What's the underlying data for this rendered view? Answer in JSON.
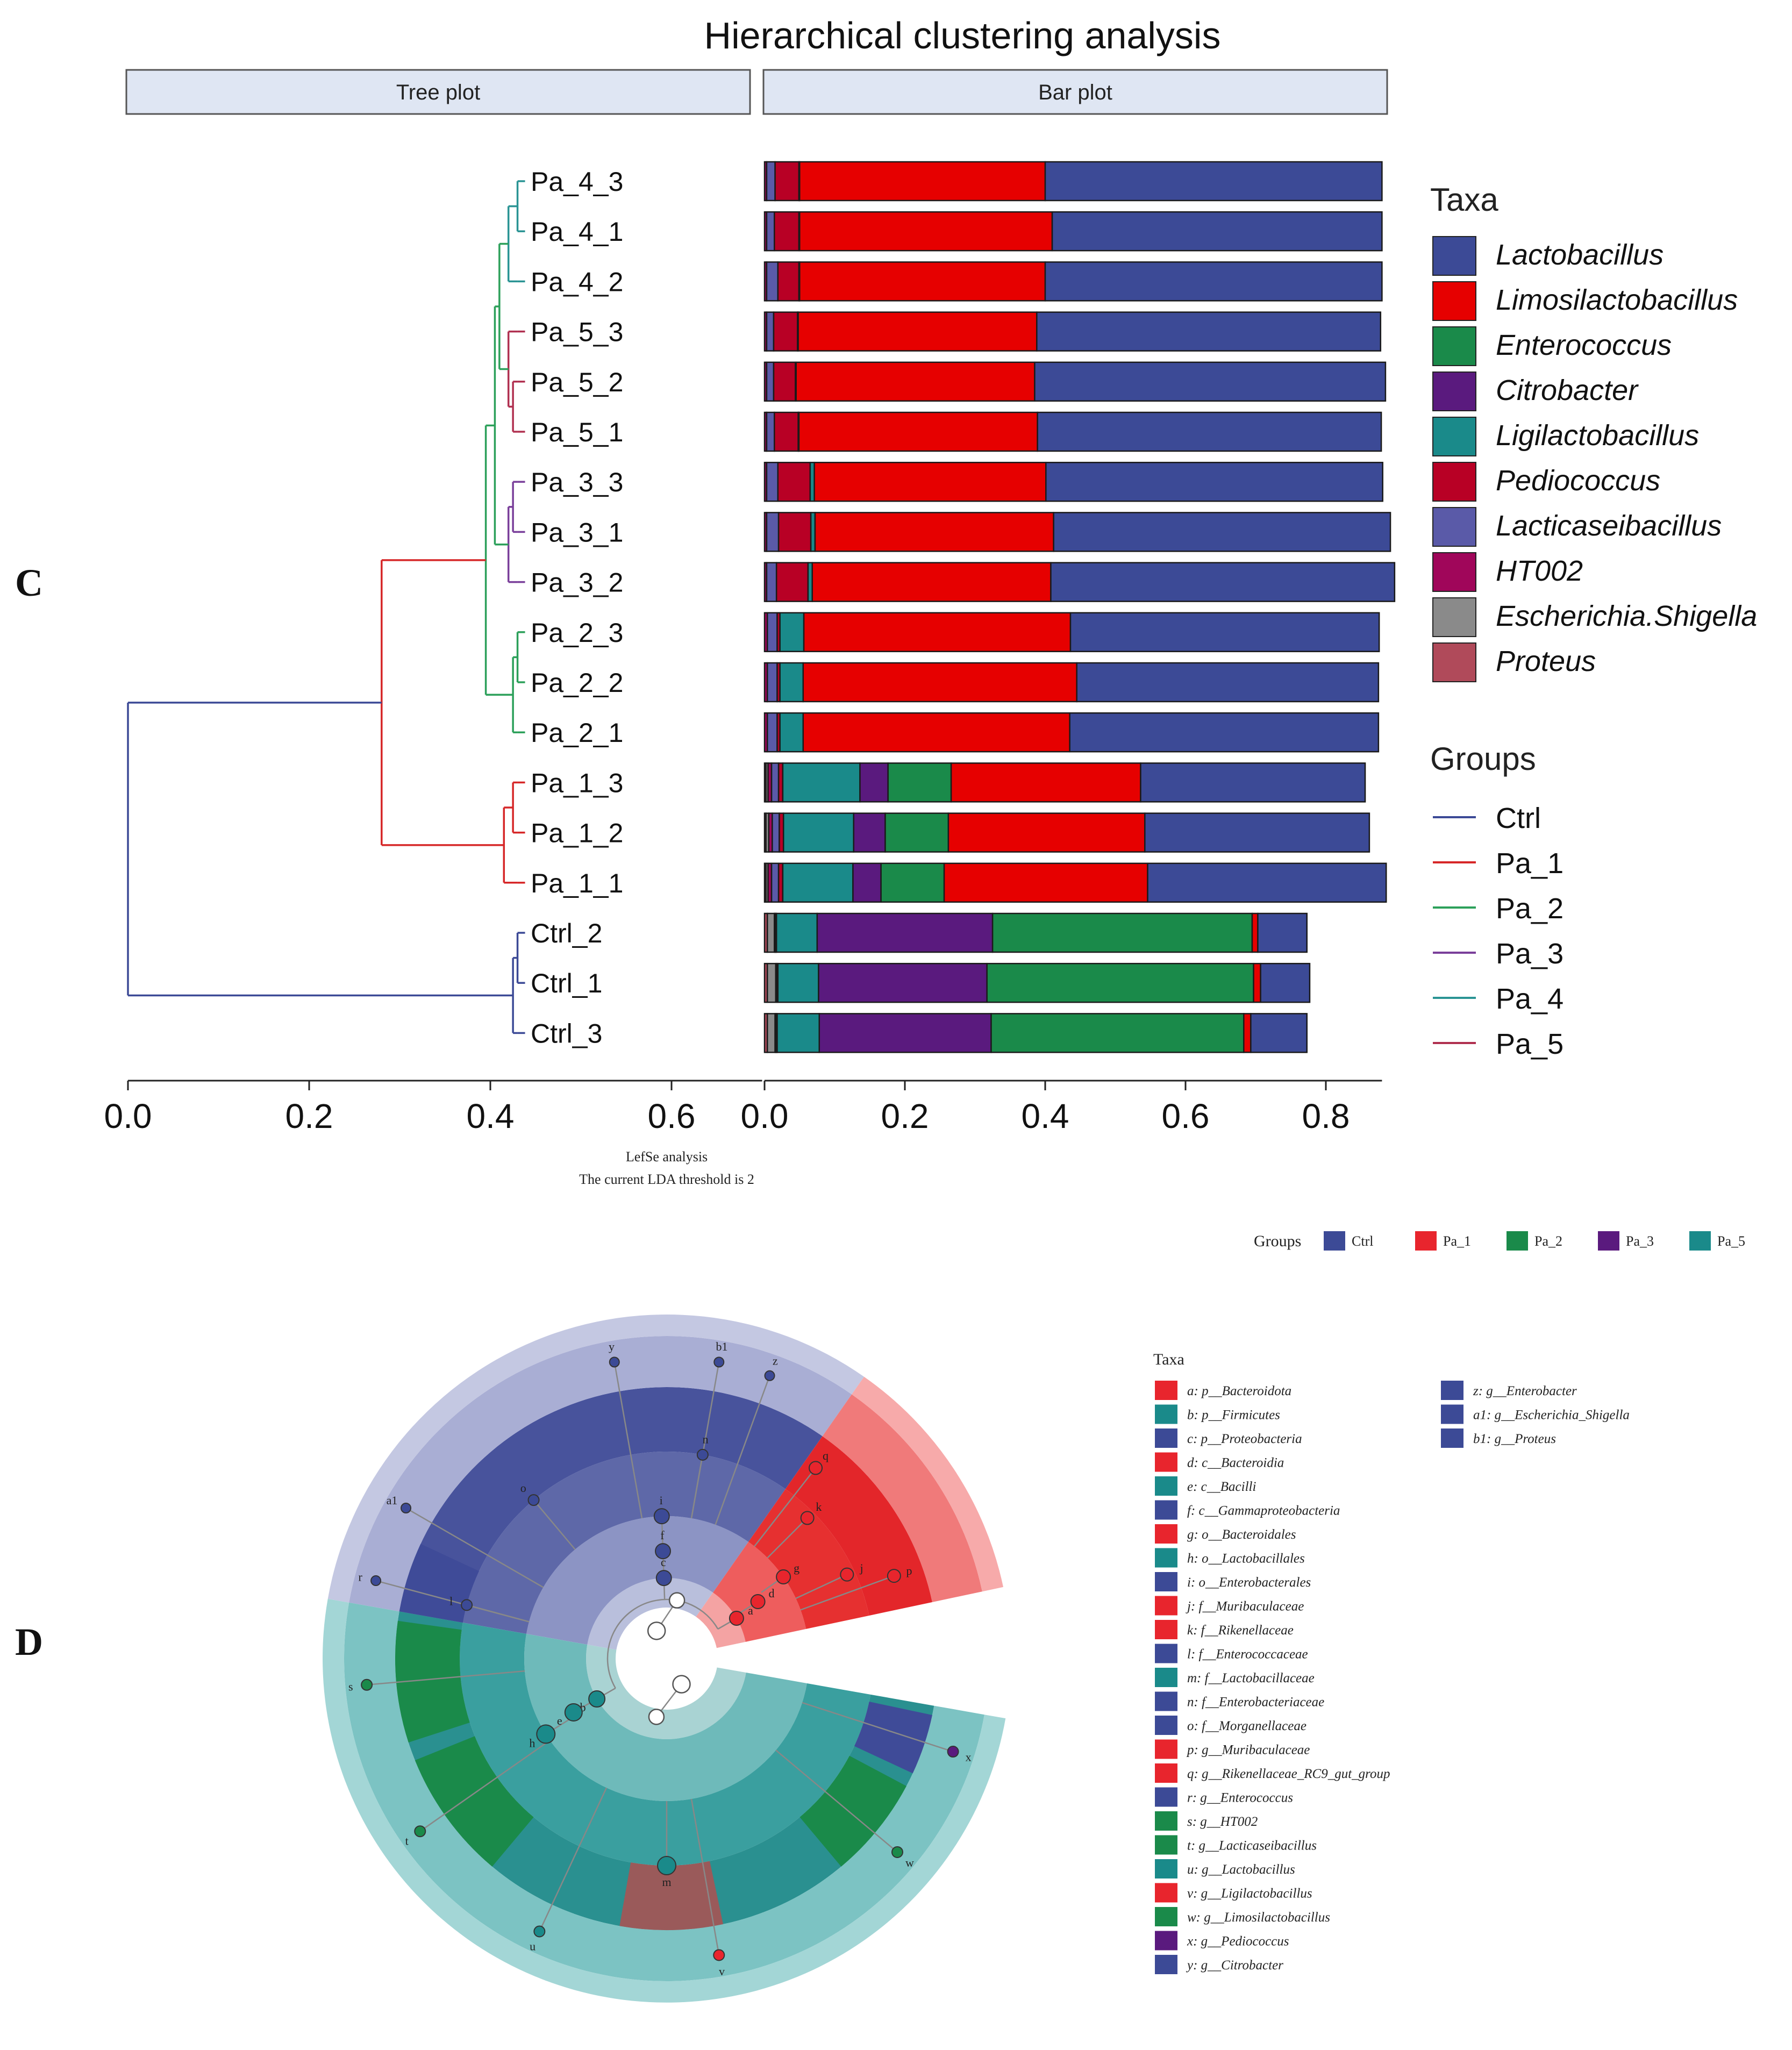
{
  "panel_c": {
    "panel_label": "C",
    "title": "Hierarchical clustering analysis",
    "tree_header": "Tree plot",
    "bar_header": "Bar plot",
    "tree_axis_ticks": [
      "0.0",
      "0.2",
      "0.4",
      "0.6"
    ],
    "bar_axis_ticks": [
      "0.0",
      "0.2",
      "0.4",
      "0.6",
      "0.8"
    ],
    "taxa_legend_title": "Taxa",
    "groups_legend_title": "Groups",
    "group_colors": {
      "Ctrl": "#3c4a96",
      "Pa_1": "#d62728",
      "Pa_2": "#2ca05a",
      "Pa_3": "#7a3f9a",
      "Pa_4": "#2a9494",
      "Pa_5": "#b03050"
    }
  },
  "chart_data": [
    {
      "type": "bar",
      "orientation": "horizontal",
      "stacked": true,
      "title": "Hierarchical clustering analysis",
      "xlim": [
        0,
        0.88
      ],
      "xticks": [
        0.0,
        0.2,
        0.4,
        0.6,
        0.8
      ],
      "categories": [
        "Pa_4_3",
        "Pa_4_1",
        "Pa_4_2",
        "Pa_5_3",
        "Pa_5_2",
        "Pa_5_1",
        "Pa_3_3",
        "Pa_3_1",
        "Pa_3_2",
        "Pa_2_3",
        "Pa_2_2",
        "Pa_2_1",
        "Pa_1_3",
        "Pa_1_2",
        "Pa_1_1",
        "Ctrl_2",
        "Ctrl_1",
        "Ctrl_3"
      ],
      "series": [
        {
          "name": "Proteus",
          "color": "#b04a5a",
          "values": [
            0,
            0,
            0,
            0,
            0,
            0,
            0,
            0,
            0,
            0,
            0,
            0,
            0.002,
            0.002,
            0.002,
            0.004,
            0.004,
            0.004
          ]
        },
        {
          "name": "Escherichia.Shigella",
          "color": "#8a8a8a",
          "values": [
            0,
            0,
            0,
            0,
            0,
            0,
            0,
            0,
            0,
            0,
            0,
            0,
            0.003,
            0.004,
            0.003,
            0.01,
            0.012,
            0.011
          ]
        },
        {
          "name": "HT002",
          "color": "#a0065a",
          "values": [
            0.003,
            0.003,
            0.003,
            0.003,
            0.003,
            0.003,
            0.003,
            0.003,
            0.003,
            0.004,
            0.004,
            0.004,
            0.005,
            0.005,
            0.005,
            0.001,
            0.001,
            0.001
          ]
        },
        {
          "name": "Lacticaseibacillus",
          "color": "#5a5aa8",
          "values": [
            0.012,
            0.011,
            0.016,
            0.01,
            0.01,
            0.011,
            0.016,
            0.017,
            0.014,
            0.014,
            0.014,
            0.014,
            0.01,
            0.01,
            0.01,
            0.001,
            0.001,
            0.001
          ]
        },
        {
          "name": "Pediococcus",
          "color": "#b80025",
          "values": [
            0.034,
            0.035,
            0.03,
            0.034,
            0.031,
            0.034,
            0.046,
            0.046,
            0.045,
            0.004,
            0.004,
            0.004,
            0.006,
            0.006,
            0.006,
            0.001,
            0.001,
            0.001
          ]
        },
        {
          "name": "Ligilactobacillus",
          "color": "#1a8a8a",
          "values": [
            0.001,
            0.001,
            0.001,
            0.001,
            0.001,
            0.001,
            0.006,
            0.006,
            0.006,
            0.034,
            0.033,
            0.033,
            0.11,
            0.1,
            0.1,
            0.058,
            0.058,
            0.06
          ]
        },
        {
          "name": "Citrobacter",
          "color": "#5a1a7e",
          "values": [
            0,
            0,
            0,
            0,
            0,
            0,
            0,
            0,
            0,
            0,
            0,
            0,
            0.04,
            0.045,
            0.04,
            0.25,
            0.24,
            0.245
          ]
        },
        {
          "name": "Enterococcus",
          "color": "#1a8a4a",
          "values": [
            0,
            0,
            0,
            0,
            0,
            0,
            0,
            0,
            0,
            0,
            0,
            0,
            0.09,
            0.09,
            0.09,
            0.37,
            0.38,
            0.36
          ]
        },
        {
          "name": "Limosilactobacillus",
          "color": "#e60000",
          "values": [
            0.35,
            0.36,
            0.35,
            0.34,
            0.34,
            0.34,
            0.33,
            0.34,
            0.34,
            0.38,
            0.39,
            0.38,
            0.27,
            0.28,
            0.29,
            0.008,
            0.01,
            0.01
          ]
        },
        {
          "name": "Lactobacillus",
          "color": "#3c4a96",
          "values": [
            0.48,
            0.47,
            0.48,
            0.49,
            0.5,
            0.49,
            0.48,
            0.48,
            0.49,
            0.44,
            0.43,
            0.44,
            0.32,
            0.32,
            0.34,
            0.07,
            0.07,
            0.08
          ]
        }
      ],
      "legend_order": [
        "Lactobacillus",
        "Limosilactobacillus",
        "Enterococcus",
        "Citrobacter",
        "Ligilactobacillus",
        "Pediococcus",
        "Lacticaseibacillus",
        "HT002",
        "Escherichia.Shigella",
        "Proteus"
      ],
      "groups_legend": [
        "Ctrl",
        "Pa_1",
        "Pa_2",
        "Pa_3",
        "Pa_4",
        "Pa_5"
      ]
    },
    {
      "type": "dendrogram",
      "xlim": [
        0,
        0.7
      ],
      "xticks": [
        0.0,
        0.2,
        0.4,
        0.6
      ],
      "leaves": [
        "Pa_4_3",
        "Pa_4_1",
        "Pa_4_2",
        "Pa_5_3",
        "Pa_5_2",
        "Pa_5_1",
        "Pa_3_3",
        "Pa_3_1",
        "Pa_3_2",
        "Pa_2_3",
        "Pa_2_2",
        "Pa_2_1",
        "Pa_1_3",
        "Pa_1_2",
        "Pa_1_1",
        "Ctrl_2",
        "Ctrl_1",
        "Ctrl_3"
      ],
      "merges": [
        {
          "a": [
            0
          ],
          "b": [
            1
          ],
          "height": 0.43,
          "group": "Pa_4"
        },
        {
          "a": [
            0,
            1
          ],
          "b": [
            2
          ],
          "height": 0.42,
          "group": "Pa_4"
        },
        {
          "a": [
            4
          ],
          "b": [
            5
          ],
          "height": 0.425,
          "group": "Pa_5"
        },
        {
          "a": [
            3
          ],
          "b": [
            4,
            5
          ],
          "height": 0.42,
          "group": "Pa_5"
        },
        {
          "a": [
            0,
            1,
            2
          ],
          "b": [
            3,
            4,
            5
          ],
          "height": 0.41,
          "group": "Pa_2"
        },
        {
          "a": [
            6
          ],
          "b": [
            7
          ],
          "height": 0.425,
          "group": "Pa_3"
        },
        {
          "a": [
            6,
            7
          ],
          "b": [
            8
          ],
          "height": 0.42,
          "group": "Pa_3"
        },
        {
          "a": [
            0,
            1,
            2,
            3,
            4,
            5
          ],
          "b": [
            6,
            7,
            8
          ],
          "height": 0.405,
          "group": "Pa_2"
        },
        {
          "a": [
            9
          ],
          "b": [
            10
          ],
          "height": 0.43,
          "group": "Pa_2"
        },
        {
          "a": [
            9,
            10
          ],
          "b": [
            11
          ],
          "height": 0.425,
          "group": "Pa_2"
        },
        {
          "a": [
            0,
            1,
            2,
            3,
            4,
            5,
            6,
            7,
            8
          ],
          "b": [
            9,
            10,
            11
          ],
          "height": 0.395,
          "group": "Pa_2"
        },
        {
          "a": [
            12
          ],
          "b": [
            13
          ],
          "height": 0.425,
          "group": "Pa_1"
        },
        {
          "a": [
            12,
            13
          ],
          "b": [
            14
          ],
          "height": 0.415,
          "group": "Pa_1"
        },
        {
          "a": [
            0,
            1,
            2,
            3,
            4,
            5,
            6,
            7,
            8,
            9,
            10,
            11
          ],
          "b": [
            12,
            13,
            14
          ],
          "height": 0.28,
          "group": "Pa_1"
        },
        {
          "a": [
            15
          ],
          "b": [
            16
          ],
          "height": 0.43,
          "group": "Ctrl"
        },
        {
          "a": [
            15,
            16
          ],
          "b": [
            17
          ],
          "height": 0.425,
          "group": "Ctrl"
        },
        {
          "a": [
            0,
            1,
            2,
            3,
            4,
            5,
            6,
            7,
            8,
            9,
            10,
            11,
            12,
            13,
            14
          ],
          "b": [
            15,
            16,
            17
          ],
          "height": 0.0,
          "group": "Ctrl"
        }
      ]
    },
    {
      "type": "cladogram",
      "panel_label": "D",
      "caption_line1": "LefSe analysis",
      "caption_line2": "The current LDA threshold is 2",
      "groups_title": "Groups",
      "groups": [
        {
          "name": "Ctrl",
          "color": "#3c4a96"
        },
        {
          "name": "Pa_1",
          "color": "#e8252d"
        },
        {
          "name": "Pa_2",
          "color": "#1a8a4a"
        },
        {
          "name": "Pa_3",
          "color": "#5a1a7e"
        },
        {
          "name": "Pa_5",
          "color": "#1a8a8a"
        }
      ],
      "taxa_title": "Taxa",
      "taxa": [
        {
          "key": "a",
          "label": "a: p__Bacteroidota",
          "group": "Pa_1"
        },
        {
          "key": "b",
          "label": "b: p__Firmicutes",
          "group": "Pa_5"
        },
        {
          "key": "c",
          "label": "c: p__Proteobacteria",
          "group": "Ctrl"
        },
        {
          "key": "d",
          "label": "d: c__Bacteroidia",
          "group": "Pa_1"
        },
        {
          "key": "e",
          "label": "e: c__Bacilli",
          "group": "Pa_5"
        },
        {
          "key": "f",
          "label": "f: c__Gammaproteobacteria",
          "group": "Ctrl"
        },
        {
          "key": "g",
          "label": "g: o__Bacteroidales",
          "group": "Pa_1"
        },
        {
          "key": "h",
          "label": "h: o__Lactobacillales",
          "group": "Pa_5"
        },
        {
          "key": "i",
          "label": "i: o__Enterobacterales",
          "group": "Ctrl"
        },
        {
          "key": "j",
          "label": "j: f__Muribaculaceae",
          "group": "Pa_1"
        },
        {
          "key": "k",
          "label": "k: f__Rikenellaceae",
          "group": "Pa_1"
        },
        {
          "key": "l",
          "label": "l: f__Enterococcaceae",
          "group": "Ctrl"
        },
        {
          "key": "m",
          "label": "m: f__Lactobacillaceae",
          "group": "Pa_5"
        },
        {
          "key": "n",
          "label": "n: f__Enterobacteriaceae",
          "group": "Ctrl"
        },
        {
          "key": "o",
          "label": "o: f__Morganellaceae",
          "group": "Ctrl"
        },
        {
          "key": "p",
          "label": "p: g__Muribaculaceae",
          "group": "Pa_1"
        },
        {
          "key": "q",
          "label": "q: g__Rikenellaceae_RC9_gut_group",
          "group": "Pa_1"
        },
        {
          "key": "r",
          "label": "r: g__Enterococcus",
          "group": "Ctrl"
        },
        {
          "key": "s",
          "label": "s: g__HT002",
          "group": "Pa_2"
        },
        {
          "key": "t",
          "label": "t: g__Lacticaseibacillus",
          "group": "Pa_2"
        },
        {
          "key": "u",
          "label": "u: g__Lactobacillus",
          "group": "Pa_5"
        },
        {
          "key": "v",
          "label": "v: g__Ligilactobacillus",
          "group": "Pa_1"
        },
        {
          "key": "w",
          "label": "w: g__Limosilactobacillus",
          "group": "Pa_2"
        },
        {
          "key": "x",
          "label": "x: g__Pediococcus",
          "group": "Pa_3"
        },
        {
          "key": "y",
          "label": "y: g__Citrobacter",
          "group": "Ctrl"
        },
        {
          "key": "z",
          "label": "z: g__Enterobacter",
          "group": "Ctrl"
        },
        {
          "key": "a1",
          "label": "a1: g__Escherichia_Shigella",
          "group": "Ctrl"
        },
        {
          "key": "b1",
          "label": "b1: g__Proteus",
          "group": "Ctrl"
        }
      ]
    }
  ]
}
